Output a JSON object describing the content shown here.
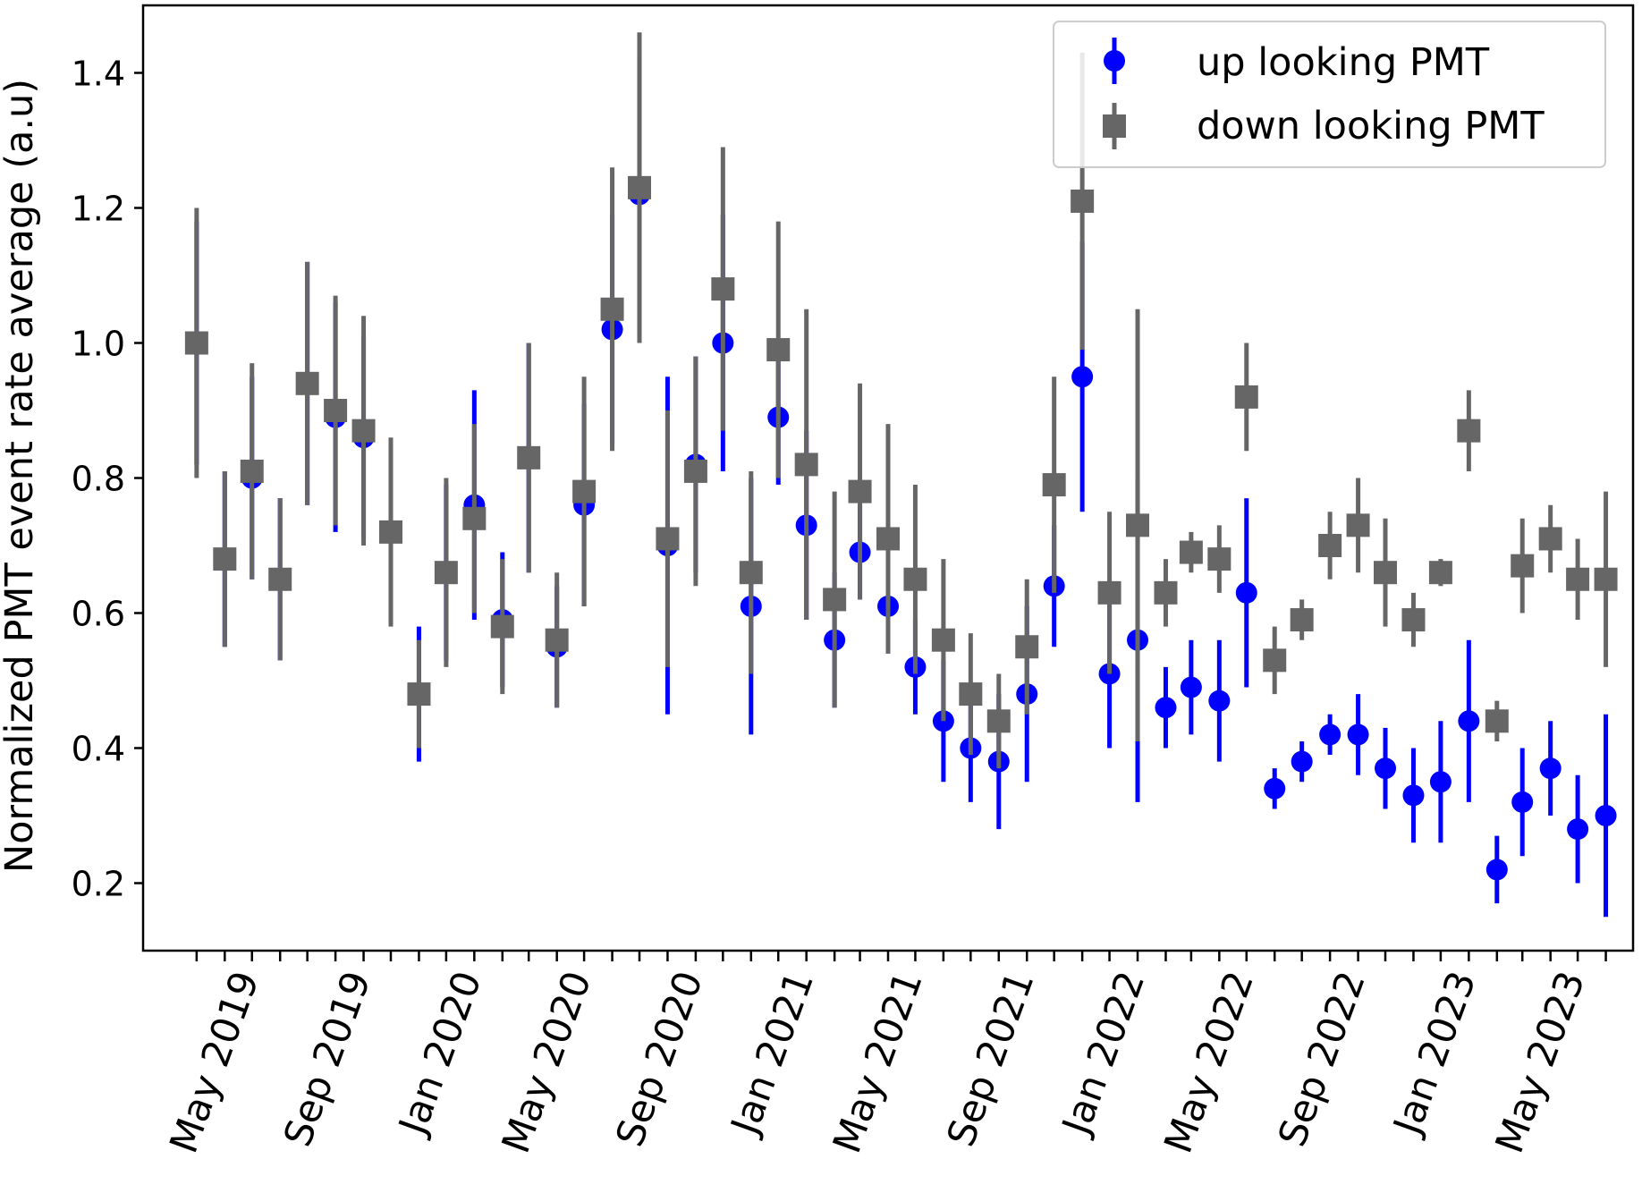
{
  "chart_data": {
    "type": "scatter",
    "title": "",
    "ylabel": "Normalized PMT event rate average (a.u)",
    "xlabel": "",
    "ylim": [
      0.1,
      1.5
    ],
    "xlim": [
      "2019-01-01",
      "2023-07-01"
    ],
    "grid": false,
    "legend_position": "top-right",
    "yticks": [
      0.2,
      0.4,
      0.6,
      0.8,
      1.0,
      1.2,
      1.4
    ],
    "ytick_labels": [
      "0.2",
      "0.4",
      "0.6",
      "0.8",
      "1.0",
      "1.2",
      "1.4"
    ],
    "xticks": [
      "2019-05-01",
      "2019-09-01",
      "2020-01-01",
      "2020-05-01",
      "2020-09-01",
      "2021-01-01",
      "2021-05-01",
      "2021-09-01",
      "2022-01-01",
      "2022-05-01",
      "2022-09-01",
      "2023-01-01",
      "2023-05-01"
    ],
    "xtick_labels": [
      "May 2019",
      "Sep 2019",
      "Jan 2020",
      "May 2020",
      "Sep 2020",
      "Jan 2021",
      "May 2021",
      "Sep 2021",
      "Jan 2022",
      "May 2022",
      "Sep 2022",
      "Jan 2023",
      "May 2023"
    ],
    "x": [
      "2019-03-01",
      "2019-04-01",
      "2019-05-01",
      "2019-06-01",
      "2019-07-01",
      "2019-08-01",
      "2019-09-01",
      "2019-10-01",
      "2019-11-01",
      "2019-12-01",
      "2020-01-01",
      "2020-02-01",
      "2020-03-01",
      "2020-04-01",
      "2020-05-01",
      "2020-06-01",
      "2020-07-01",
      "2020-08-01",
      "2020-09-01",
      "2020-10-01",
      "2020-11-01",
      "2020-12-01",
      "2021-01-01",
      "2021-02-01",
      "2021-03-01",
      "2021-04-01",
      "2021-05-01",
      "2021-06-01",
      "2021-07-01",
      "2021-08-01",
      "2021-09-01",
      "2021-10-01",
      "2021-11-01",
      "2021-12-01",
      "2022-01-01",
      "2022-02-01",
      "2022-03-01",
      "2022-04-01",
      "2022-05-01",
      "2022-06-01",
      "2022-07-01",
      "2022-08-01",
      "2022-09-01",
      "2022-10-01",
      "2022-11-01",
      "2022-12-01",
      "2023-01-01",
      "2023-02-01",
      "2023-03-01",
      "2023-04-01",
      "2023-05-01",
      "2023-06-01"
    ],
    "series": [
      {
        "name": "up looking PMT",
        "color": "#0000ff",
        "marker": "circle",
        "values": [
          1.0,
          0.68,
          0.8,
          0.65,
          0.94,
          0.89,
          0.86,
          0.72,
          0.48,
          0.66,
          0.76,
          0.59,
          0.83,
          0.55,
          0.76,
          1.02,
          1.22,
          0.7,
          0.82,
          1.0,
          0.61,
          0.89,
          0.73,
          0.56,
          0.69,
          0.61,
          0.52,
          0.44,
          0.4,
          0.38,
          0.48,
          0.64,
          0.95,
          0.51,
          0.56,
          0.46,
          0.49,
          0.47,
          0.63,
          0.34,
          0.38,
          0.42,
          0.42,
          0.37,
          0.33,
          0.35,
          0.44,
          0.22,
          0.32,
          0.37,
          0.28,
          0.3
        ],
        "errors": [
          0.18,
          0.13,
          0.15,
          0.12,
          0.18,
          0.17,
          0.15,
          0.13,
          0.1,
          0.13,
          0.17,
          0.1,
          0.17,
          0.09,
          0.15,
          0.17,
          0.21,
          0.25,
          0.16,
          0.19,
          0.19,
          0.1,
          0.14,
          0.1,
          0.07,
          0.07,
          0.07,
          0.09,
          0.08,
          0.1,
          0.13,
          0.09,
          0.2,
          0.11,
          0.24,
          0.06,
          0.07,
          0.09,
          0.14,
          0.03,
          0.03,
          0.03,
          0.06,
          0.06,
          0.07,
          0.09,
          0.12,
          0.05,
          0.08,
          0.07,
          0.08,
          0.15
        ]
      },
      {
        "name": "down looking PMT",
        "color": "#666666",
        "marker": "square",
        "values": [
          1.0,
          0.68,
          0.81,
          0.65,
          0.94,
          0.9,
          0.87,
          0.72,
          0.48,
          0.66,
          0.74,
          0.58,
          0.83,
          0.56,
          0.78,
          1.05,
          1.23,
          0.71,
          0.81,
          1.08,
          0.66,
          0.99,
          0.82,
          0.62,
          0.78,
          0.71,
          0.65,
          0.56,
          0.48,
          0.44,
          0.55,
          0.79,
          1.21,
          0.63,
          0.73,
          0.63,
          0.69,
          0.68,
          0.92,
          0.53,
          0.59,
          0.7,
          0.73,
          0.66,
          0.59,
          0.66,
          0.87,
          0.44,
          0.67,
          0.71,
          0.65,
          0.65
        ],
        "errors": [
          0.2,
          0.13,
          0.16,
          0.12,
          0.18,
          0.17,
          0.17,
          0.14,
          0.08,
          0.14,
          0.14,
          0.1,
          0.17,
          0.1,
          0.17,
          0.21,
          0.23,
          0.19,
          0.17,
          0.21,
          0.15,
          0.19,
          0.23,
          0.16,
          0.16,
          0.17,
          0.14,
          0.12,
          0.09,
          0.07,
          0.1,
          0.16,
          0.22,
          0.12,
          0.32,
          0.05,
          0.03,
          0.05,
          0.08,
          0.05,
          0.03,
          0.05,
          0.07,
          0.08,
          0.04,
          0.02,
          0.06,
          0.03,
          0.07,
          0.05,
          0.06,
          0.13
        ]
      }
    ]
  }
}
